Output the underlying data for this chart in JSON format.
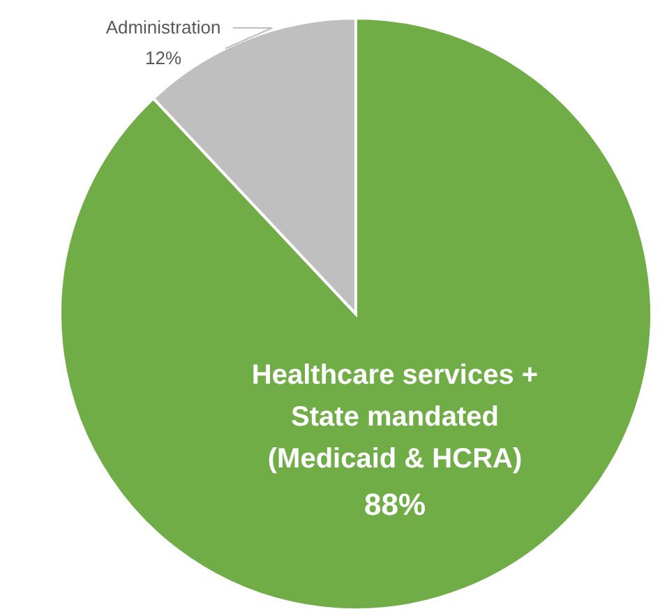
{
  "chart_data": {
    "type": "pie",
    "categories": [
      "Healthcare services + State mandated (Medicaid & HCRA)",
      "Administration"
    ],
    "values": [
      88,
      12
    ],
    "colors": [
      "#70ad47",
      "#bfbfbf"
    ],
    "value_labels": [
      "88%",
      "12%"
    ]
  }
}
